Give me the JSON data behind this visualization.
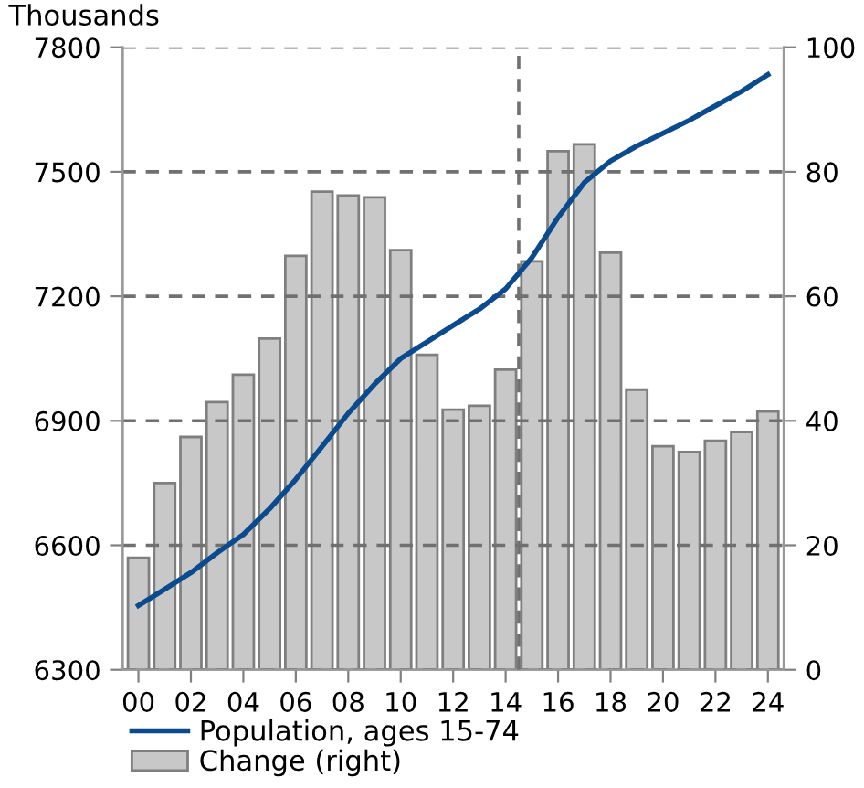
{
  "chart_data": {
    "type": "bar",
    "ylabel": "Thousands",
    "x": [
      2000,
      2001,
      2002,
      2003,
      2004,
      2005,
      2006,
      2007,
      2008,
      2009,
      2010,
      2011,
      2012,
      2013,
      2014,
      2015,
      2016,
      2017,
      2018,
      2019,
      2020,
      2021,
      2022,
      2023,
      2024
    ],
    "xlim": [
      1999.4,
      2024.6
    ],
    "xticks": [
      {
        "value": 2000,
        "label": "00"
      },
      {
        "value": 2002,
        "label": "02"
      },
      {
        "value": 2004,
        "label": "04"
      },
      {
        "value": 2006,
        "label": "06"
      },
      {
        "value": 2008,
        "label": "08"
      },
      {
        "value": 2010,
        "label": "10"
      },
      {
        "value": 2012,
        "label": "12"
      },
      {
        "value": 2014,
        "label": "14"
      },
      {
        "value": 2016,
        "label": "16"
      },
      {
        "value": 2018,
        "label": "18"
      },
      {
        "value": 2020,
        "label": "20"
      },
      {
        "value": 2022,
        "label": "22"
      },
      {
        "value": 2024,
        "label": "24"
      }
    ],
    "ylim": [
      6300,
      7800
    ],
    "yticks": [
      6300,
      6600,
      6900,
      7200,
      7500,
      7800
    ],
    "y2lim": [
      0,
      100
    ],
    "y2ticks": [
      0,
      20,
      40,
      60,
      80,
      100
    ],
    "series": [
      {
        "name": "Population, ages 15-74",
        "type": "line",
        "color": "#0a4a8f",
        "values": [
          6455,
          6494,
          6534,
          6582,
          6626,
          6688,
          6759,
          6838,
          6918,
          6988,
          7050,
          7090,
          7130,
          7169,
          7218,
          7293,
          7390,
          7474,
          7526,
          7562,
          7593,
          7624,
          7659,
          7694,
          7734
        ]
      },
      {
        "name": "Change (right)",
        "axis": "y2",
        "color": "#c8c8c8",
        "values": [
          18,
          30,
          37.4,
          43,
          47.4,
          53.2,
          66.5,
          76.8,
          76.2,
          75.9,
          67.4,
          50.6,
          41.8,
          42.4,
          48.2,
          65.6,
          83.3,
          84.4,
          67,
          45,
          35.9,
          35,
          36.8,
          38.2,
          41.5
        ]
      }
    ],
    "ref_lines": [
      {
        "axis": "x",
        "value": 2014.5,
        "line_style": "dashed",
        "color": "#707070"
      }
    ],
    "grid": "y",
    "legend": "bottom"
  }
}
